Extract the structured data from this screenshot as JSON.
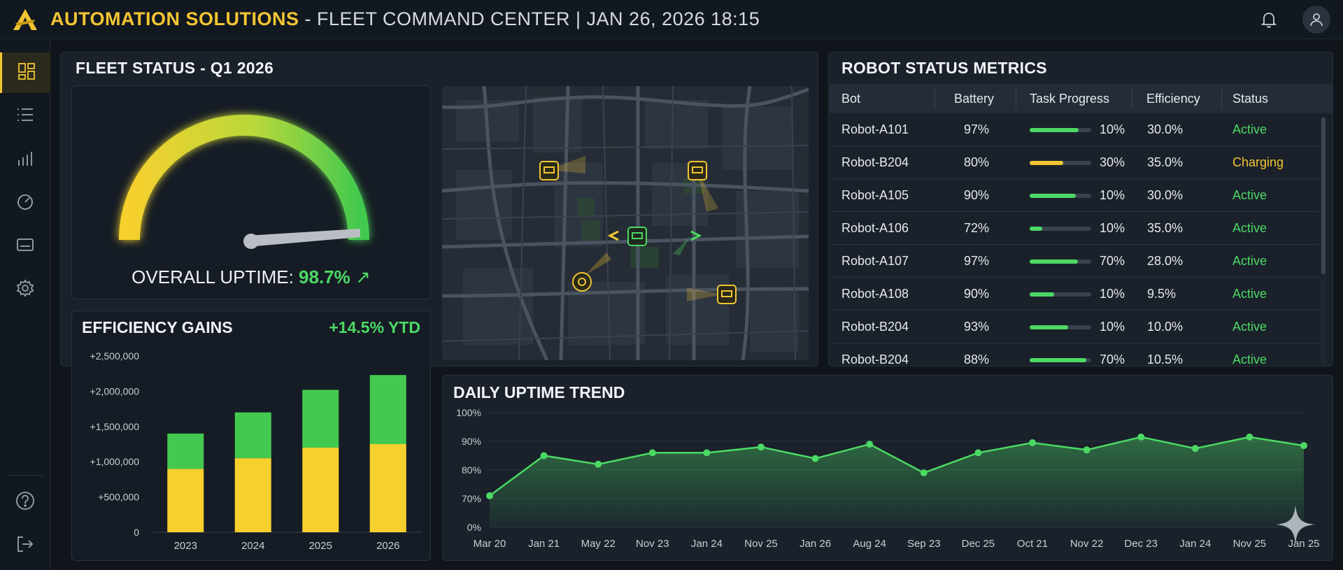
{
  "header": {
    "brand": "AUTOMATION SOLUTIONS",
    "title_rest": " - FLEET COMMAND CENTER | JAN 26, 2026 18:15"
  },
  "icons": {
    "logo": "logo-icon",
    "notifications": "bell-icon",
    "user": "user-icon"
  },
  "sidebar": {
    "items": [
      {
        "icon": "dashboard-icon",
        "active": true
      },
      {
        "icon": "list-icon",
        "active": false
      },
      {
        "icon": "bar-chart-icon",
        "active": false
      },
      {
        "icon": "speedometer-icon",
        "active": false
      },
      {
        "icon": "card-icon",
        "active": false
      },
      {
        "icon": "gear-icon",
        "active": false
      },
      {
        "icon": "help-icon",
        "active": false
      },
      {
        "icon": "logout-icon",
        "active": false
      }
    ]
  },
  "fleet_status": {
    "title": "FLEET STATUS - Q1 2026",
    "uptime_label": "OVERALL UPTIME: ",
    "uptime_value": "98.7%",
    "uptime_arrow": "↗",
    "gauge_fraction": 0.987
  },
  "efficiency": {
    "title": "EFFICIENCY GAINS",
    "ytd": "+14.5% YTD"
  },
  "robot_metrics": {
    "title": "ROBOT STATUS METRICS",
    "columns": [
      "Bot",
      "Battery",
      "Task Progress",
      "Efficiency",
      "Status"
    ],
    "rows": [
      {
        "bot": "Robot-A101",
        "battery": "97%",
        "progress": "10%",
        "bar_fraction": 0.8,
        "bar_color": "#4cd964",
        "efficiency": "30.0%",
        "status": "Active",
        "status_color": "#4cd964"
      },
      {
        "bot": "Robot-B204",
        "battery": "80%",
        "progress": "30%",
        "bar_fraction": 0.55,
        "bar_color": "#f2c532",
        "efficiency": "35.0%",
        "status": "Charging",
        "status_color": "#f2c532"
      },
      {
        "bot": "Robot-A105",
        "battery": "90%",
        "progress": "10%",
        "bar_fraction": 0.75,
        "bar_color": "#4cd964",
        "efficiency": "30.0%",
        "status": "Active",
        "status_color": "#4cd964"
      },
      {
        "bot": "Robot-A106",
        "battery": "72%",
        "progress": "10%",
        "bar_fraction": 0.2,
        "bar_color": "#4cd964",
        "efficiency": "35.0%",
        "status": "Active",
        "status_color": "#4cd964"
      },
      {
        "bot": "Robot-A107",
        "battery": "97%",
        "progress": "70%",
        "bar_fraction": 0.78,
        "bar_color": "#4cd964",
        "efficiency": "28.0%",
        "status": "Active",
        "status_color": "#4cd964"
      },
      {
        "bot": "Robot-A108",
        "battery": "90%",
        "progress": "10%",
        "bar_fraction": 0.4,
        "bar_color": "#4cd964",
        "efficiency": "9.5%",
        "status": "Active",
        "status_color": "#4cd964"
      },
      {
        "bot": "Robot-B204",
        "battery": "93%",
        "progress": "10%",
        "bar_fraction": 0.62,
        "bar_color": "#4cd964",
        "efficiency": "10.0%",
        "status": "Active",
        "status_color": "#4cd964"
      },
      {
        "bot": "Robot-B204",
        "battery": "88%",
        "progress": "70%",
        "bar_fraction": 0.92,
        "bar_color": "#4cd964",
        "efficiency": "10.5%",
        "status": "Active",
        "status_color": "#4cd964"
      }
    ]
  },
  "daily_trend": {
    "title": "DAILY UPTIME TREND"
  },
  "chart_data": [
    {
      "id": "efficiency_gains",
      "type": "bar",
      "stacked": true,
      "categories": [
        "2023",
        "2024",
        "2025",
        "2026"
      ],
      "series": [
        {
          "values": [
            900000,
            1050000,
            1200000,
            1250000
          ],
          "color": "#f7d02e"
        },
        {
          "values": [
            500000,
            650000,
            820000,
            980000
          ],
          "color": "#43c94f"
        }
      ],
      "yticks": [
        "0",
        "+500,000",
        "+1,000,000",
        "+1,500,000",
        "+2,000,000",
        "+2,500,000"
      ],
      "ylim": [
        0,
        2500000
      ],
      "grid": false
    },
    {
      "id": "daily_uptime_trend",
      "type": "area",
      "categories": [
        "Mar 20",
        "Jan 21",
        "May 22",
        "Nov 23",
        "Jan 24",
        "Nov 25",
        "Jan 26",
        "Aug 24",
        "Sep 23",
        "Dec 25",
        "Oct 21",
        "Nov 22",
        "Dec 23",
        "Jan 24",
        "Nov 25",
        "Jan 25"
      ],
      "values": [
        71,
        85,
        82,
        86,
        86,
        88,
        84,
        89,
        79,
        86,
        89.5,
        87,
        91.5,
        87.5,
        91.5,
        88.5
      ],
      "yticks": [
        "0%",
        "70%",
        "80%",
        "90%",
        "100%"
      ],
      "color": "#4cd964",
      "grid": true
    }
  ]
}
